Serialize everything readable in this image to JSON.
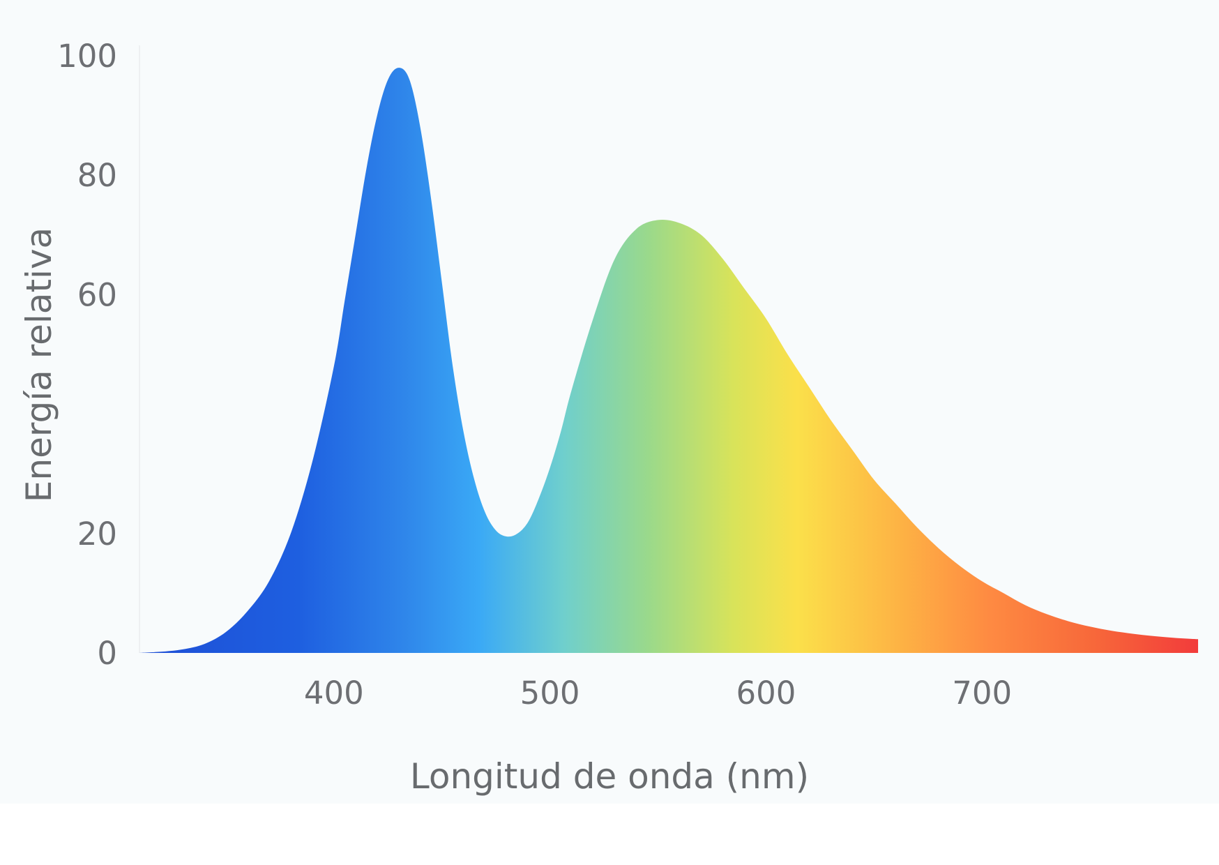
{
  "chart_data": {
    "type": "area",
    "title": "",
    "xlabel": "Longitud de onda (nm)",
    "ylabel": "Energía relativa",
    "xlim": [
      310,
      800
    ],
    "ylim": [
      0,
      100
    ],
    "x_ticks": [
      400,
      500,
      600,
      700
    ],
    "x_tick_labels": [
      "400",
      "500",
      "600",
      "700"
    ],
    "y_ticks": [
      0,
      20,
      60,
      80,
      100
    ],
    "y_tick_labels": [
      "0",
      "20",
      "60",
      "80",
      "100"
    ],
    "grid": false,
    "legend": false,
    "fill": "visible-spectrum gradient (blue to red by wavelength)",
    "series": [
      {
        "x": [
          310,
          320,
          330,
          340,
          350,
          360,
          370,
          380,
          390,
          400,
          405,
          410,
          415,
          420,
          425,
          430,
          435,
          440,
          445,
          450,
          455,
          460,
          465,
          470,
          475,
          480,
          485,
          490,
          495,
          500,
          505,
          510,
          520,
          530,
          540,
          550,
          560,
          570,
          580,
          590,
          600,
          610,
          620,
          630,
          640,
          650,
          660,
          670,
          680,
          690,
          700,
          710,
          720,
          730,
          740,
          750,
          760,
          770,
          780,
          790,
          800
        ],
        "values": [
          0,
          0.2,
          0.6,
          1.5,
          3.5,
          7,
          12,
          20,
          32,
          48,
          59,
          70,
          81,
          90,
          96,
          98,
          96,
          88,
          76,
          62,
          48,
          37,
          29,
          23.5,
          20.5,
          19.5,
          20,
          22,
          26,
          31,
          37,
          44,
          56,
          66,
          71,
          72.5,
          72,
          70,
          66,
          61,
          56,
          50,
          44.5,
          39,
          34,
          29,
          25,
          21,
          17.5,
          14.5,
          12,
          10,
          8,
          6.5,
          5.3,
          4.4,
          3.7,
          3.2,
          2.8,
          2.5,
          2.3
        ]
      }
    ]
  }
}
